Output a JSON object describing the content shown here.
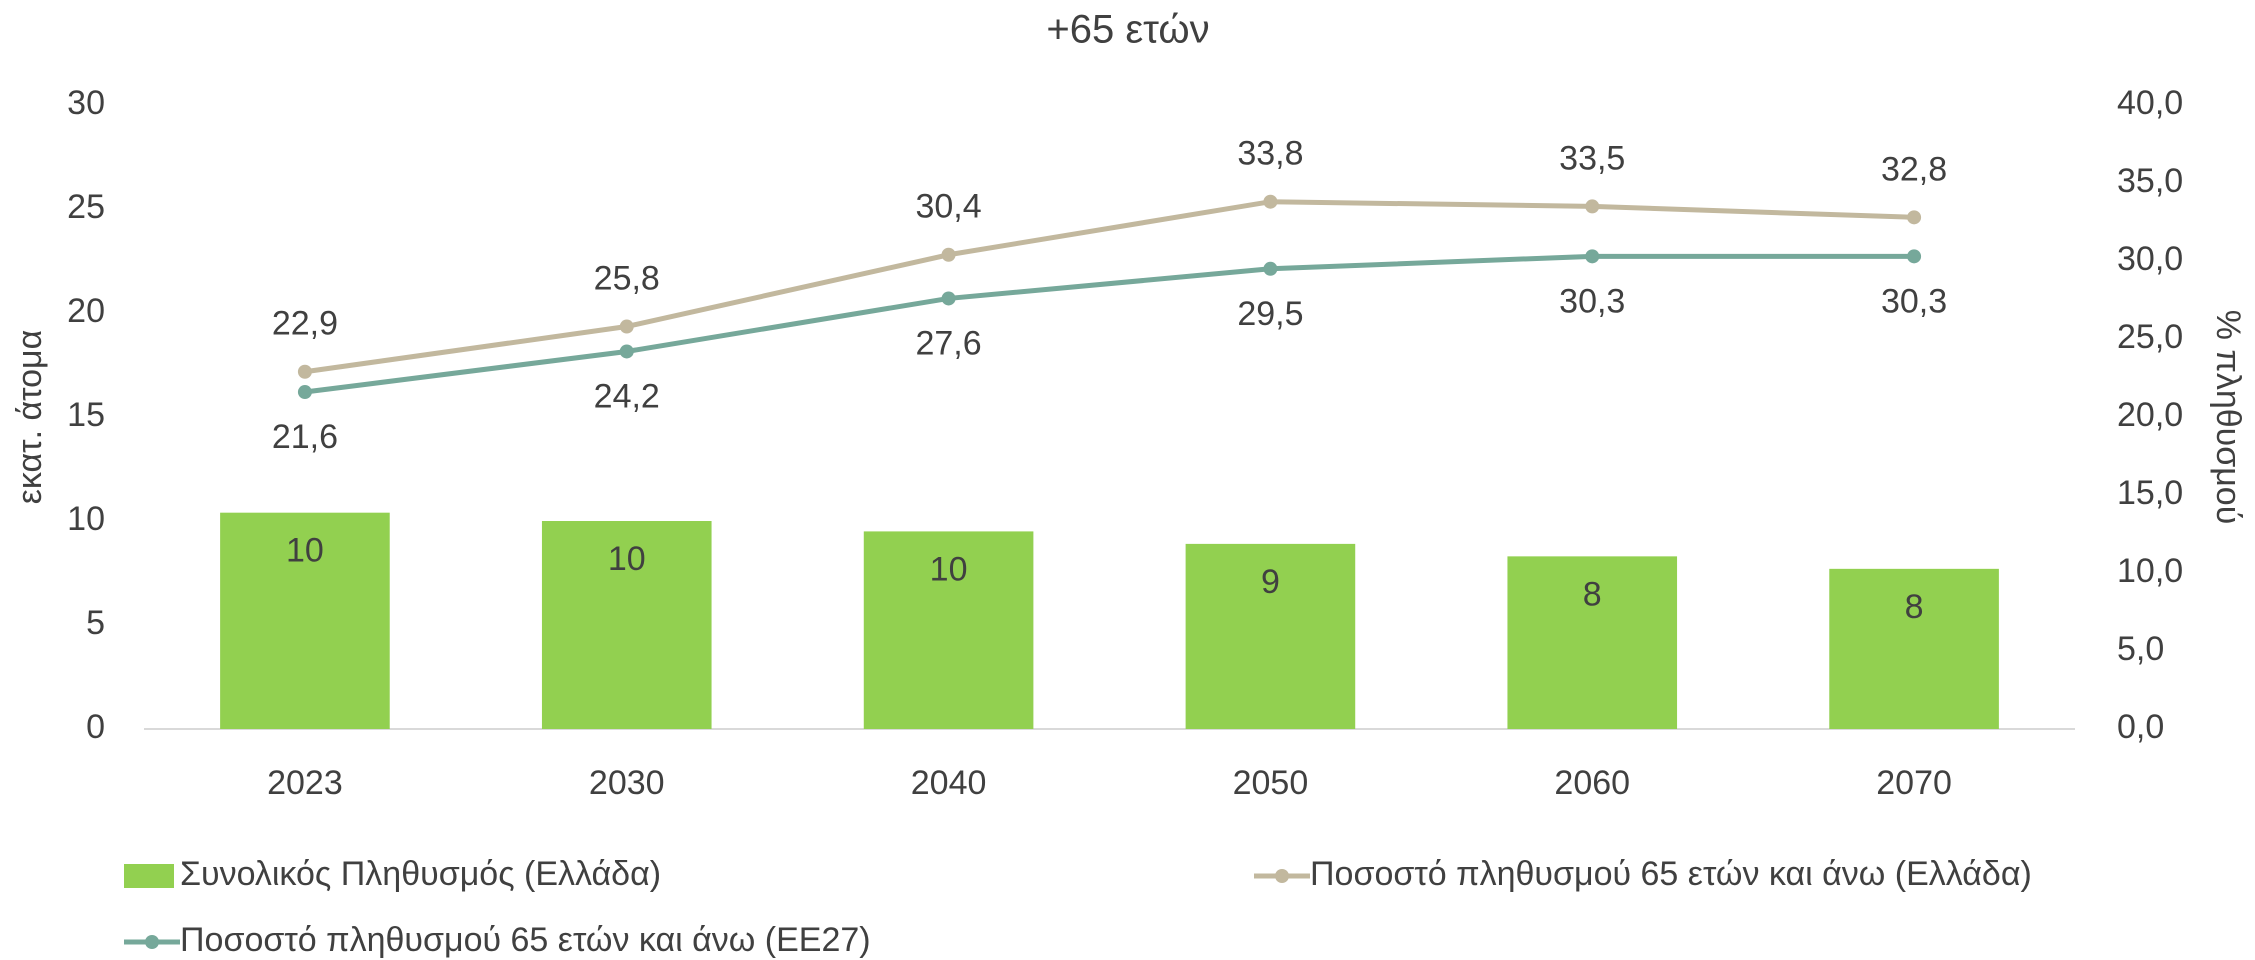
{
  "chart_data": {
    "type": "bar",
    "title": "+65 ετών",
    "categories": [
      "2023",
      "2030",
      "2040",
      "2050",
      "2060",
      "2070"
    ],
    "series": [
      {
        "name": "Συνολικός Πληθυσμός (Ελλάδα)",
        "type": "bar",
        "color": "#92d050",
        "values": [
          10.4,
          10.0,
          9.5,
          8.9,
          8.3,
          7.7
        ],
        "value_labels": [
          "10",
          "10",
          "10",
          "9",
          "8",
          "8"
        ]
      },
      {
        "name": "Ποσοστό πληθυσμού 65 ετών και άνω (Ελλάδα)",
        "type": "line",
        "axis": "y2",
        "color": "#c2b89e",
        "values": [
          22.9,
          25.8,
          30.4,
          33.8,
          33.5,
          32.8
        ],
        "value_labels": [
          "22,9",
          "25,8",
          "30,4",
          "33,8",
          "33,5",
          "32,8"
        ]
      },
      {
        "name": "Ποσοστό πληθυσμού 65 ετών και άνω (ΕΕ27)",
        "type": "line",
        "axis": "y2",
        "color": "#76a89a",
        "values": [
          21.6,
          24.2,
          27.6,
          29.5,
          30.3,
          30.3
        ],
        "value_labels": [
          "21,6",
          "24,2",
          "27,6",
          "29,5",
          "30,3",
          "30,3"
        ]
      }
    ],
    "ylabel": "εκατ. άτομα",
    "y2label": "% πληθυσμού",
    "ylim": [
      0,
      30
    ],
    "yticks": [
      0,
      5,
      10,
      15,
      20,
      25,
      30
    ],
    "y2lim": [
      0,
      40
    ],
    "y2ticks": [
      {
        "value": 0,
        "label": "0,0"
      },
      {
        "value": 5,
        "label": "5,0"
      },
      {
        "value": 10,
        "label": "10,0"
      },
      {
        "value": 15,
        "label": "15,0"
      },
      {
        "value": 20,
        "label": "20,0"
      },
      {
        "value": 25,
        "label": "25,0"
      },
      {
        "value": 30,
        "label": "30,0"
      },
      {
        "value": 35,
        "label": "35,0"
      },
      {
        "value": 40,
        "label": "40,0"
      }
    ],
    "grid": false,
    "legend": "bottom"
  }
}
